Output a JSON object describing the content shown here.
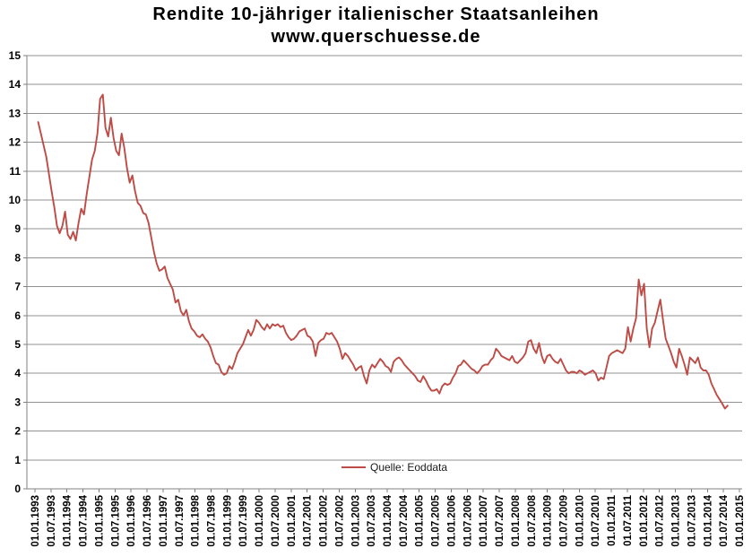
{
  "title": "Rendite 10-jähriger italienischer Staatsanleihen",
  "subtitle": "www.querschuesse.de",
  "legend": {
    "label": "Quelle: Eoddata"
  },
  "colors": {
    "series": "#BE4B45",
    "grid": "#919191",
    "axis": "#808080",
    "text": "#000000",
    "background": "#FFFFFF"
  },
  "chart_data": {
    "type": "line",
    "title": "Rendite 10-jähriger italienischer Staatsanleihen",
    "subtitle": "www.querschuesse.de",
    "xlabel": "",
    "ylabel": "",
    "grid": "horizontal",
    "legend_position": "bottom-center-inside",
    "ylim": [
      0,
      15
    ],
    "ytick_step": 1,
    "y_ticks": [
      0,
      1,
      2,
      3,
      4,
      5,
      6,
      7,
      8,
      9,
      10,
      11,
      12,
      13,
      14,
      15
    ],
    "xlim_years": [
      1993,
      2015
    ],
    "x_tick_labels": [
      "01.01.1993",
      "01.07.1993",
      "01.01.1994",
      "01.07.1994",
      "01.01.1995",
      "01.07.1995",
      "01.01.1996",
      "01.07.1996",
      "01.01.1997",
      "01.07.1997",
      "01.01.1998",
      "01.07.1998",
      "01.01.1999",
      "01.07.1999",
      "01.01.2000",
      "01.07.2000",
      "01.01.2001",
      "01.07.2001",
      "01.01.2002",
      "01.07.2002",
      "01.01.2003",
      "01.07.2003",
      "01.01.2004",
      "01.07.2004",
      "01.01.2005",
      "01.07.2005",
      "01.01.2006",
      "01.07.2006",
      "01.01.2007",
      "01.07.2007",
      "01.01.2008",
      "01.07.2008",
      "01.01.2009",
      "01.07.2009",
      "01.01.2010",
      "01.07.2010",
      "01.01.2011",
      "01.07.2011",
      "01.01.2012",
      "01.07.2012",
      "01.01.2013",
      "01.07.2013",
      "01.01.2014",
      "01.07.2014",
      "01.01.2015"
    ],
    "series": [
      {
        "name": "Quelle: Eoddata",
        "color": "#BE4B45",
        "x_start_year": 1993.1,
        "x_step_years": 0.0841,
        "values": [
          12.7,
          12.3,
          11.9,
          11.5,
          10.9,
          10.3,
          9.75,
          9.1,
          8.85,
          9.1,
          9.6,
          8.8,
          8.65,
          8.9,
          8.6,
          9.2,
          9.7,
          9.5,
          10.2,
          10.8,
          11.4,
          11.7,
          12.3,
          13.5,
          13.65,
          12.5,
          12.2,
          12.85,
          12.15,
          11.7,
          11.55,
          12.3,
          11.8,
          11.1,
          10.6,
          10.85,
          10.3,
          9.9,
          9.8,
          9.55,
          9.5,
          9.2,
          8.7,
          8.2,
          7.8,
          7.55,
          7.6,
          7.7,
          7.3,
          7.1,
          6.9,
          6.45,
          6.55,
          6.15,
          6.0,
          6.2,
          5.8,
          5.55,
          5.45,
          5.3,
          5.25,
          5.35,
          5.2,
          5.1,
          4.9,
          4.6,
          4.35,
          4.3,
          4.05,
          3.95,
          4.0,
          4.25,
          4.15,
          4.4,
          4.7,
          4.85,
          5.0,
          5.25,
          5.5,
          5.3,
          5.5,
          5.85,
          5.75,
          5.6,
          5.5,
          5.7,
          5.55,
          5.7,
          5.65,
          5.7,
          5.6,
          5.65,
          5.4,
          5.25,
          5.15,
          5.2,
          5.3,
          5.45,
          5.5,
          5.55,
          5.3,
          5.25,
          5.1,
          4.6,
          5.05,
          5.15,
          5.2,
          5.4,
          5.35,
          5.4,
          5.25,
          5.1,
          4.85,
          4.5,
          4.7,
          4.6,
          4.45,
          4.3,
          4.1,
          4.2,
          4.25,
          3.9,
          3.65,
          4.1,
          4.3,
          4.2,
          4.35,
          4.5,
          4.4,
          4.25,
          4.2,
          4.05,
          4.4,
          4.5,
          4.55,
          4.45,
          4.3,
          4.2,
          4.1,
          4.0,
          3.9,
          3.75,
          3.7,
          3.9,
          3.75,
          3.55,
          3.4,
          3.4,
          3.45,
          3.3,
          3.55,
          3.65,
          3.6,
          3.65,
          3.85,
          4.0,
          4.25,
          4.3,
          4.45,
          4.35,
          4.25,
          4.15,
          4.1,
          4.0,
          4.1,
          4.25,
          4.3,
          4.3,
          4.45,
          4.55,
          4.85,
          4.75,
          4.6,
          4.55,
          4.5,
          4.45,
          4.6,
          4.4,
          4.35,
          4.45,
          4.55,
          4.7,
          5.1,
          5.15,
          4.85,
          4.7,
          5.05,
          4.6,
          4.35,
          4.6,
          4.65,
          4.5,
          4.4,
          4.35,
          4.5,
          4.3,
          4.1,
          4.0,
          4.05,
          4.05,
          4.0,
          4.1,
          4.05,
          3.95,
          4.0,
          4.05,
          4.1,
          4.0,
          3.75,
          3.85,
          3.8,
          4.2,
          4.6,
          4.7,
          4.75,
          4.8,
          4.75,
          4.7,
          4.85,
          5.6,
          5.1,
          5.55,
          5.9,
          7.25,
          6.7,
          7.1,
          5.55,
          4.9,
          5.55,
          5.75,
          6.15,
          6.55,
          5.85,
          5.2,
          4.95,
          4.7,
          4.4,
          4.2,
          4.85,
          4.6,
          4.3,
          3.95,
          4.55,
          4.45,
          4.35,
          4.55,
          4.2,
          4.1,
          4.1,
          3.95,
          3.65,
          3.45,
          3.25,
          3.1,
          2.95,
          2.78,
          2.88
        ]
      }
    ]
  }
}
